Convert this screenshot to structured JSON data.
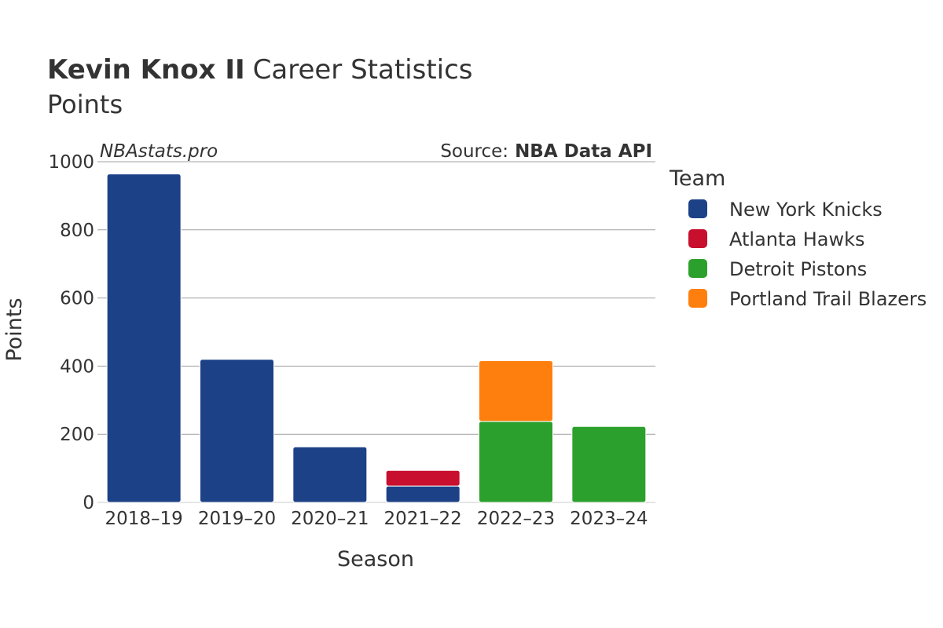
{
  "header": {
    "title_bold": "Kevin Knox II",
    "title_rest": "Career Statistics",
    "subtitle": "Points"
  },
  "watermark": "NBAstats.pro",
  "source": {
    "label": "Source:",
    "value": "NBA Data API"
  },
  "legend": {
    "title": "Team",
    "items": [
      {
        "label": "New York Knicks",
        "color": "#1c4187"
      },
      {
        "label": "Atlanta Hawks",
        "color": "#c8102e"
      },
      {
        "label": "Detroit Pistons",
        "color": "#2ca02c"
      },
      {
        "label": "Portland Trail Blazers",
        "color": "#ff7f0e"
      }
    ]
  },
  "chart_data": {
    "type": "bar",
    "stacked": true,
    "categories": [
      "2018–19",
      "2019–20",
      "2020–21",
      "2021–22",
      "2022–23",
      "2023–24"
    ],
    "series": [
      {
        "name": "New York Knicks",
        "color": "#1c4187",
        "values": [
          964,
          420,
          163,
          48,
          0,
          0
        ]
      },
      {
        "name": "Atlanta Hawks",
        "color": "#c8102e",
        "values": [
          0,
          0,
          0,
          46,
          0,
          0
        ]
      },
      {
        "name": "Detroit Pistons",
        "color": "#2ca02c",
        "values": [
          0,
          0,
          0,
          0,
          238,
          223
        ]
      },
      {
        "name": "Portland Trail Blazers",
        "color": "#ff7f0e",
        "values": [
          0,
          0,
          0,
          0,
          178,
          0
        ]
      }
    ],
    "xlabel": "Season",
    "ylabel": "Points",
    "ylim": [
      0,
      1000
    ],
    "yticks": [
      0,
      200,
      400,
      600,
      800,
      1000
    ],
    "grid": true,
    "legend_position": "right"
  }
}
